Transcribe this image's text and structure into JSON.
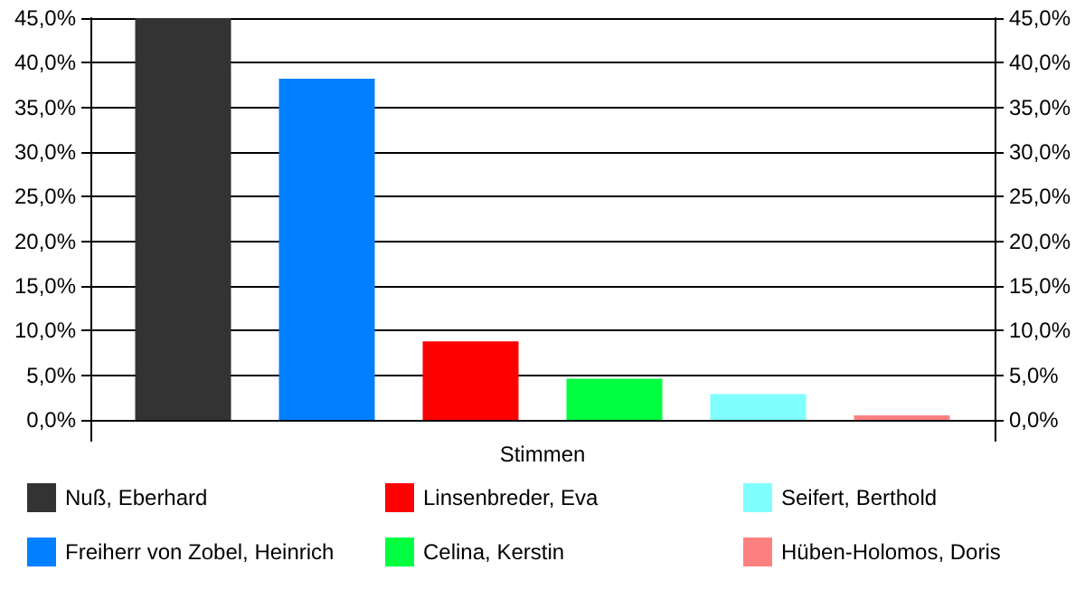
{
  "chart_data": {
    "type": "bar",
    "xlabel": "Stimmen",
    "categories": [
      null
    ],
    "series": [
      {
        "name": "Nuß, Eberhard",
        "color": "#333333",
        "values": [
          45
        ]
      },
      {
        "name": "Freiherr von Zobel, Heinrich",
        "color": "#0080ff",
        "values": [
          38.2
        ]
      },
      {
        "name": "Linsenbreder, Eva",
        "color": "#ff0000",
        "values": [
          8.8
        ]
      },
      {
        "name": "Celina, Kerstin",
        "color": "#00ff40",
        "values": [
          4.6
        ]
      },
      {
        "name": "Seifert, Berthold",
        "color": "#80ffff",
        "values": [
          2.9
        ]
      },
      {
        "name": "Hüben-Holomos, Doris",
        "color": "#ff8080",
        "values": [
          0.5
        ]
      }
    ],
    "ylim": [
      0,
      45
    ],
    "yticks": [
      {
        "value": 0,
        "label": "0,0%"
      },
      {
        "value": 5,
        "label": "5,0%"
      },
      {
        "value": 10,
        "label": "10,0%"
      },
      {
        "value": 15,
        "label": "15,0%"
      },
      {
        "value": 20,
        "label": "20,0%"
      },
      {
        "value": 25,
        "label": "25,0%"
      },
      {
        "value": 30,
        "label": "30,0%"
      },
      {
        "value": 35,
        "label": "35,0%"
      },
      {
        "value": 40,
        "label": "40,0%"
      },
      {
        "value": 45,
        "label": "45,0%"
      }
    ],
    "y2lim": [
      0,
      45
    ],
    "y2ticks": [
      {
        "value": 0,
        "label": "0,0%"
      },
      {
        "value": 5,
        "label": "5,0%"
      },
      {
        "value": 10,
        "label": "10,0%"
      },
      {
        "value": 15,
        "label": "15,0%"
      },
      {
        "value": 20,
        "label": "20,0%"
      },
      {
        "value": 25,
        "label": "25,0%"
      },
      {
        "value": 30,
        "label": "30,0%"
      },
      {
        "value": 35,
        "label": "35,0%"
      },
      {
        "value": 40,
        "label": "40,0%"
      },
      {
        "value": 45,
        "label": "45,0%"
      }
    ],
    "grid": "y",
    "legend": "bottom"
  }
}
